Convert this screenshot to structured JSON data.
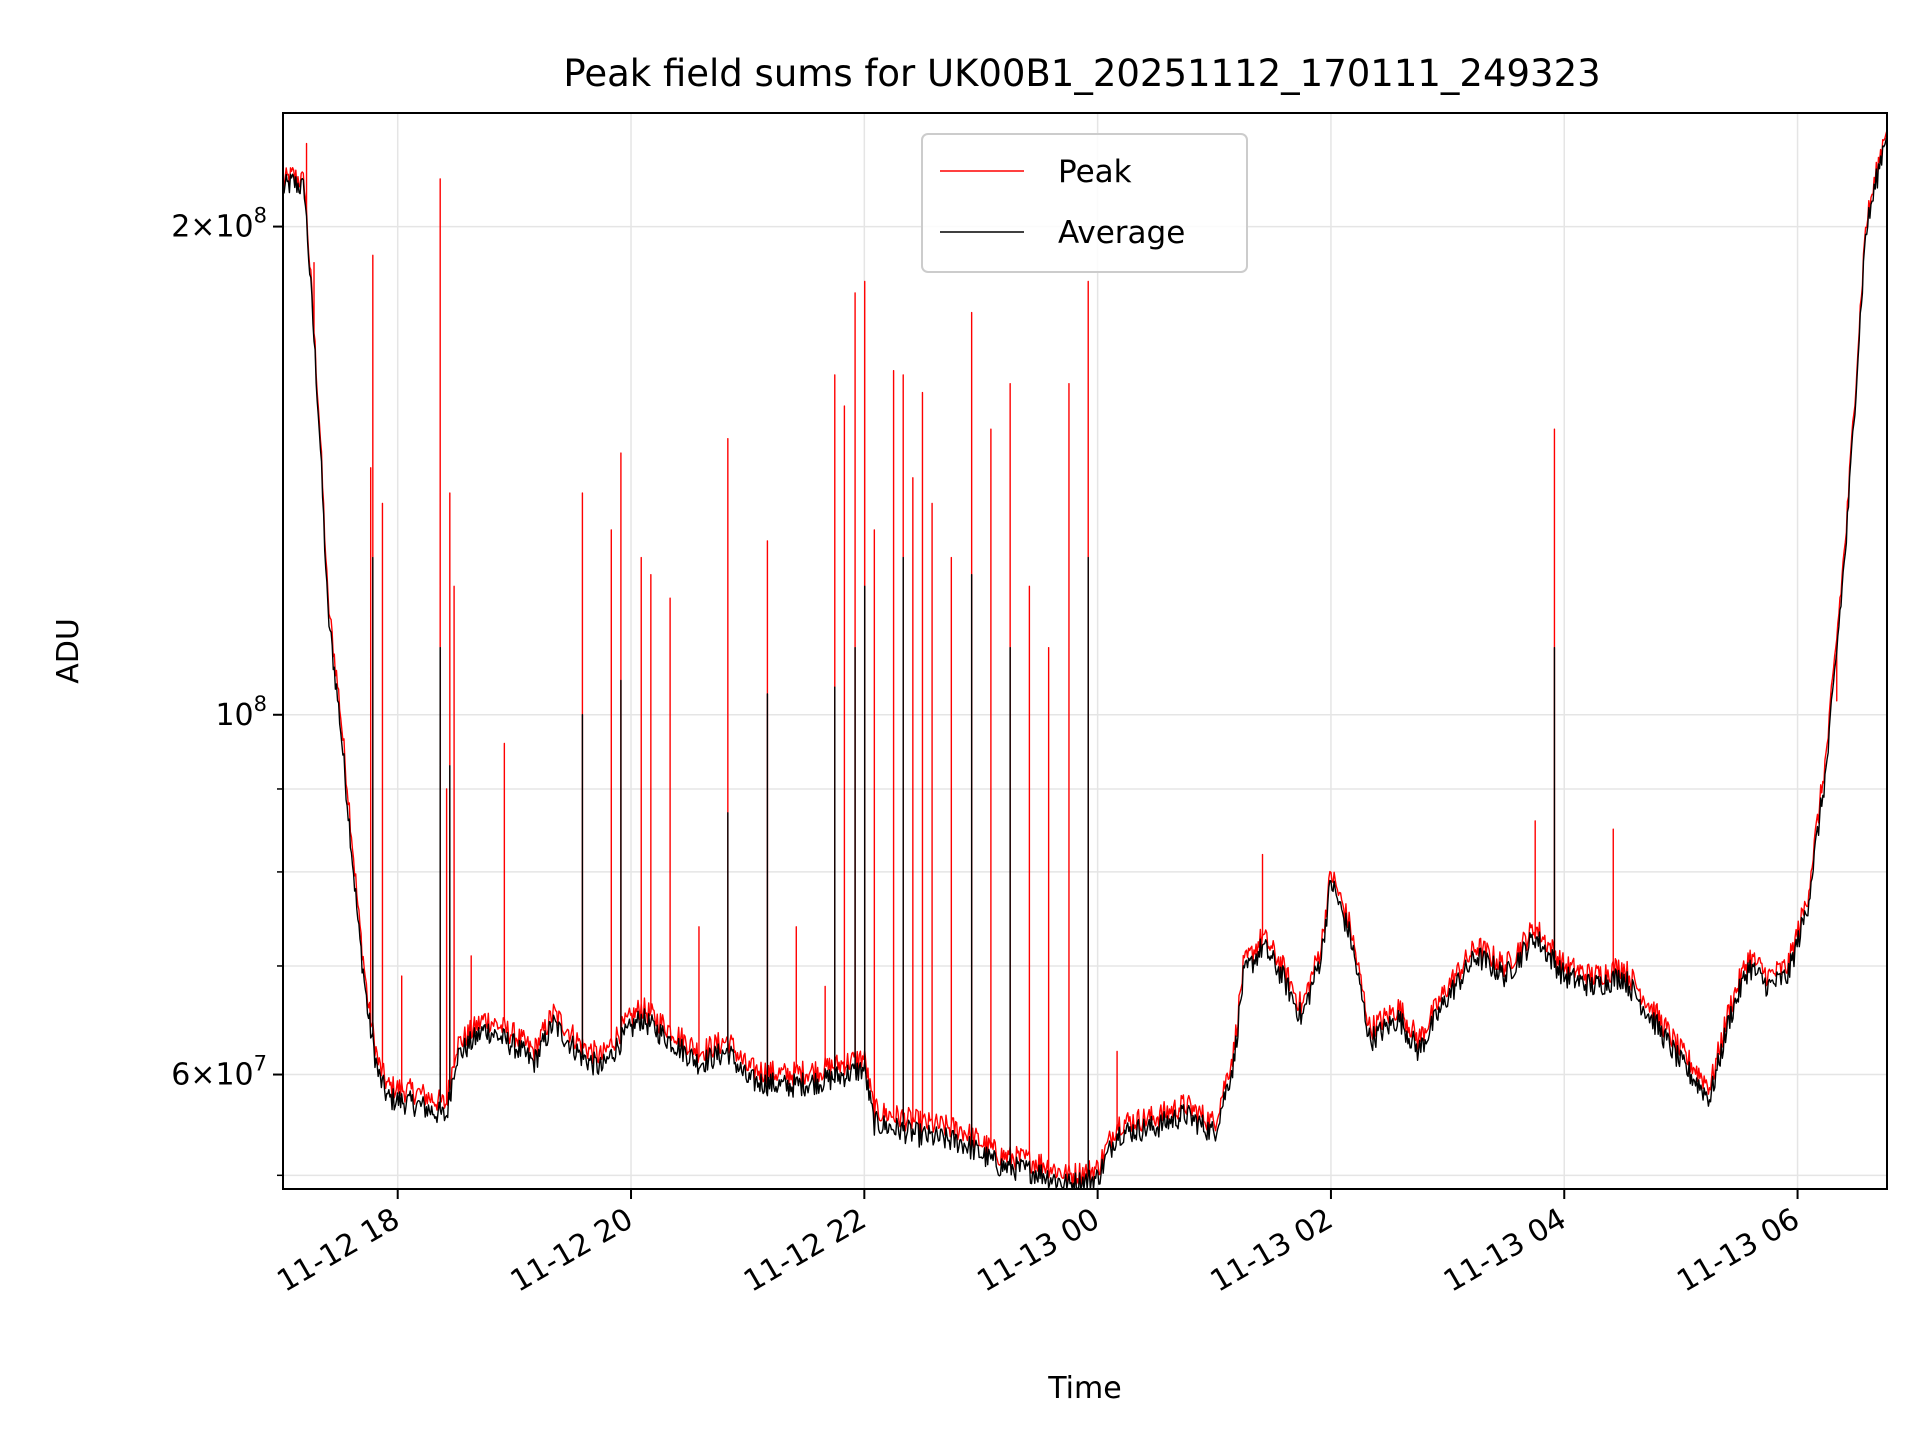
{
  "chart_data": {
    "type": "line",
    "title": "Peak field sums for UK00B1_20251112_170111_249323",
    "xlabel": "Time",
    "ylabel": "ADU",
    "y_scale": "log",
    "xlim": [
      "2025-11-12 17:01",
      "2025-11-13 06:46"
    ],
    "ylim": [
      51000000,
      235000000
    ],
    "grid": true,
    "legend": "upper center",
    "x_ticks": [
      {
        "t": "2025-11-12 18:00",
        "label": "11-12 18"
      },
      {
        "t": "2025-11-12 20:00",
        "label": "11-12 20"
      },
      {
        "t": "2025-11-12 22:00",
        "label": "11-12 22"
      },
      {
        "t": "2025-11-13 00:00",
        "label": "11-13 00"
      },
      {
        "t": "2025-11-13 02:00",
        "label": "11-13 02"
      },
      {
        "t": "2025-11-13 04:00",
        "label": "11-13 04"
      },
      {
        "t": "2025-11-13 06:00",
        "label": "11-13 06"
      }
    ],
    "y_ticks_major": [
      {
        "v": 60000000,
        "mant": "6",
        "exp": "7"
      },
      {
        "v": 100000000,
        "mant": "",
        "exp": "8"
      },
      {
        "v": 200000000,
        "mant": "2",
        "exp": "8"
      }
    ],
    "y_ticks_minor": [
      52000000,
      70000000,
      80000000,
      90000000
    ],
    "series": [
      {
        "name": "Peak",
        "color": "#ff0000",
        "points": [
          [
            "2025-11-12 17:01",
            213000000
          ],
          [
            "2025-11-12 17:06",
            215000000
          ],
          [
            "2025-11-12 17:12",
            213000000
          ],
          [
            "2025-11-12 17:16",
            180000000
          ],
          [
            "2025-11-12 17:20",
            150000000
          ],
          [
            "2025-11-12 17:24",
            118000000
          ],
          [
            "2025-11-12 17:30",
            102000000
          ],
          [
            "2025-11-12 17:35",
            88000000
          ],
          [
            "2025-11-12 17:40",
            75000000
          ],
          [
            "2025-11-12 17:45",
            66000000
          ],
          [
            "2025-11-12 17:50",
            61000000
          ],
          [
            "2025-11-12 17:55",
            59000000
          ],
          [
            "2025-11-12 18:10",
            58500000
          ],
          [
            "2025-11-12 18:25",
            57500000
          ],
          [
            "2025-11-12 18:30",
            62500000
          ],
          [
            "2025-11-12 18:45",
            65000000
          ],
          [
            "2025-11-12 19:00",
            63500000
          ],
          [
            "2025-11-12 19:10",
            62000000
          ],
          [
            "2025-11-12 19:20",
            65500000
          ],
          [
            "2025-11-12 19:35",
            62500000
          ],
          [
            "2025-11-12 19:45",
            61500000
          ],
          [
            "2025-11-12 19:55",
            64000000
          ],
          [
            "2025-11-12 20:05",
            66000000
          ],
          [
            "2025-11-12 20:20",
            64000000
          ],
          [
            "2025-11-12 20:35",
            62000000
          ],
          [
            "2025-11-12 20:50",
            63000000
          ],
          [
            "2025-11-12 21:00",
            60500000
          ],
          [
            "2025-11-12 21:20",
            60000000
          ],
          [
            "2025-11-12 21:40",
            60500000
          ],
          [
            "2025-11-12 22:00",
            61500000
          ],
          [
            "2025-11-12 22:05",
            57000000
          ],
          [
            "2025-11-12 22:30",
            56000000
          ],
          [
            "2025-11-12 22:50",
            55500000
          ],
          [
            "2025-11-12 23:10",
            53500000
          ],
          [
            "2025-11-12 23:30",
            53000000
          ],
          [
            "2025-11-12 23:45",
            52000000
          ],
          [
            "2025-11-13 00:00",
            52500000
          ],
          [
            "2025-11-13 00:10",
            56000000
          ],
          [
            "2025-11-13 00:30",
            56500000
          ],
          [
            "2025-11-13 00:45",
            57500000
          ],
          [
            "2025-11-13 01:00",
            56000000
          ],
          [
            "2025-11-13 01:10",
            62000000
          ],
          [
            "2025-11-13 01:15",
            70000000
          ],
          [
            "2025-11-13 01:25",
            73000000
          ],
          [
            "2025-11-13 01:35",
            70000000
          ],
          [
            "2025-11-13 01:45",
            66000000
          ],
          [
            "2025-11-13 01:55",
            72000000
          ],
          [
            "2025-11-13 02:00",
            80000000
          ],
          [
            "2025-11-13 02:10",
            74000000
          ],
          [
            "2025-11-13 02:20",
            64000000
          ],
          [
            "2025-11-13 02:35",
            66000000
          ],
          [
            "2025-11-13 02:45",
            63000000
          ],
          [
            "2025-11-13 03:00",
            68000000
          ],
          [
            "2025-11-13 03:15",
            72000000
          ],
          [
            "2025-11-13 03:30",
            70000000
          ],
          [
            "2025-11-13 03:45",
            74000000
          ],
          [
            "2025-11-13 04:00",
            70000000
          ],
          [
            "2025-11-13 04:15",
            69000000
          ],
          [
            "2025-11-13 04:30",
            70000000
          ],
          [
            "2025-11-13 04:45",
            66000000
          ],
          [
            "2025-11-13 05:00",
            62000000
          ],
          [
            "2025-11-13 05:15",
            59000000
          ],
          [
            "2025-11-13 05:25",
            66000000
          ],
          [
            "2025-11-13 05:35",
            71000000
          ],
          [
            "2025-11-13 05:45",
            69000000
          ],
          [
            "2025-11-13 05:55",
            70000000
          ],
          [
            "2025-11-13 06:05",
            77000000
          ],
          [
            "2025-11-13 06:15",
            95000000
          ],
          [
            "2025-11-13 06:25",
            130000000
          ],
          [
            "2025-11-13 06:35",
            200000000
          ],
          [
            "2025-11-13 06:46",
            232000000
          ]
        ],
        "spikes": [
          [
            "2025-11-12 17:13",
            225000000
          ],
          [
            "2025-11-12 17:17",
            190000000
          ],
          [
            "2025-11-12 17:46",
            142000000
          ],
          [
            "2025-11-12 17:47",
            192000000
          ],
          [
            "2025-11-12 17:52",
            135000000
          ],
          [
            "2025-11-12 18:02",
            69000000
          ],
          [
            "2025-11-12 18:22",
            214000000
          ],
          [
            "2025-11-12 18:25",
            90000000
          ],
          [
            "2025-11-12 18:27",
            137000000
          ],
          [
            "2025-11-12 18:29",
            120000000
          ],
          [
            "2025-11-12 18:38",
            71000000
          ],
          [
            "2025-11-12 18:55",
            96000000
          ],
          [
            "2025-11-12 19:35",
            137000000
          ],
          [
            "2025-11-12 19:50",
            130000000
          ],
          [
            "2025-11-12 19:55",
            145000000
          ],
          [
            "2025-11-12 20:05",
            125000000
          ],
          [
            "2025-11-12 20:10",
            122000000
          ],
          [
            "2025-11-12 20:20",
            118000000
          ],
          [
            "2025-11-12 20:35",
            74000000
          ],
          [
            "2025-11-12 20:50",
            148000000
          ],
          [
            "2025-11-12 21:10",
            128000000
          ],
          [
            "2025-11-12 21:25",
            74000000
          ],
          [
            "2025-11-12 21:40",
            68000000
          ],
          [
            "2025-11-12 21:45",
            162000000
          ],
          [
            "2025-11-12 21:50",
            155000000
          ],
          [
            "2025-11-12 21:55",
            182000000
          ],
          [
            "2025-11-12 22:00",
            185000000
          ],
          [
            "2025-11-12 22:05",
            130000000
          ],
          [
            "2025-11-12 22:15",
            163000000
          ],
          [
            "2025-11-12 22:20",
            162000000
          ],
          [
            "2025-11-12 22:25",
            140000000
          ],
          [
            "2025-11-12 22:30",
            158000000
          ],
          [
            "2025-11-12 22:35",
            135000000
          ],
          [
            "2025-11-12 22:45",
            125000000
          ],
          [
            "2025-11-12 22:55",
            177000000
          ],
          [
            "2025-11-12 23:05",
            150000000
          ],
          [
            "2025-11-12 23:15",
            160000000
          ],
          [
            "2025-11-12 23:25",
            120000000
          ],
          [
            "2025-11-12 23:35",
            110000000
          ],
          [
            "2025-11-12 23:45",
            160000000
          ],
          [
            "2025-11-12 23:55",
            185000000
          ],
          [
            "2025-11-13 00:10",
            62000000
          ],
          [
            "2025-11-13 01:25",
            82000000
          ],
          [
            "2025-11-13 03:45",
            86000000
          ],
          [
            "2025-11-13 03:55",
            150000000
          ],
          [
            "2025-11-13 04:25",
            85000000
          ],
          [
            "2025-11-13 06:20",
            102000000
          ]
        ]
      },
      {
        "name": "Average",
        "color": "#000000",
        "points": [
          [
            "2025-11-12 17:01",
            211000000
          ],
          [
            "2025-11-12 17:06",
            213000000
          ],
          [
            "2025-11-12 17:12",
            211000000
          ],
          [
            "2025-11-12 17:16",
            178000000
          ],
          [
            "2025-11-12 17:20",
            148000000
          ],
          [
            "2025-11-12 17:24",
            116000000
          ],
          [
            "2025-11-12 17:30",
            100000000
          ],
          [
            "2025-11-12 17:35",
            86000000
          ],
          [
            "2025-11-12 17:40",
            73500000
          ],
          [
            "2025-11-12 17:45",
            65000000
          ],
          [
            "2025-11-12 17:50",
            60000000
          ],
          [
            "2025-11-12 17:55",
            58000000
          ],
          [
            "2025-11-12 18:10",
            57500000
          ],
          [
            "2025-11-12 18:25",
            56500000
          ],
          [
            "2025-11-12 18:30",
            61500000
          ],
          [
            "2025-11-12 18:45",
            64000000
          ],
          [
            "2025-11-12 19:00",
            62500000
          ],
          [
            "2025-11-12 19:10",
            61000000
          ],
          [
            "2025-11-12 19:20",
            64500000
          ],
          [
            "2025-11-12 19:35",
            61500000
          ],
          [
            "2025-11-12 19:45",
            60500000
          ],
          [
            "2025-11-12 19:55",
            63000000
          ],
          [
            "2025-11-12 20:05",
            65000000
          ],
          [
            "2025-11-12 20:20",
            63000000
          ],
          [
            "2025-11-12 20:35",
            61000000
          ],
          [
            "2025-11-12 20:50",
            62000000
          ],
          [
            "2025-11-12 21:00",
            59500000
          ],
          [
            "2025-11-12 21:20",
            59000000
          ],
          [
            "2025-11-12 21:40",
            59500000
          ],
          [
            "2025-11-12 22:00",
            60500000
          ],
          [
            "2025-11-12 22:05",
            56000000
          ],
          [
            "2025-11-12 22:30",
            55000000
          ],
          [
            "2025-11-12 22:50",
            54500000
          ],
          [
            "2025-11-12 23:10",
            52700000
          ],
          [
            "2025-11-12 23:30",
            52200000
          ],
          [
            "2025-11-12 23:45",
            51300000
          ],
          [
            "2025-11-13 00:00",
            51800000
          ],
          [
            "2025-11-13 00:10",
            55200000
          ],
          [
            "2025-11-13 00:30",
            55700000
          ],
          [
            "2025-11-13 00:45",
            56700000
          ],
          [
            "2025-11-13 01:00",
            55200000
          ],
          [
            "2025-11-13 01:10",
            61000000
          ],
          [
            "2025-11-13 01:15",
            69000000
          ],
          [
            "2025-11-13 01:25",
            72000000
          ],
          [
            "2025-11-13 01:35",
            69000000
          ],
          [
            "2025-11-13 01:45",
            65000000
          ],
          [
            "2025-11-13 01:55",
            71000000
          ],
          [
            "2025-11-13 02:00",
            79000000
          ],
          [
            "2025-11-13 02:10",
            73000000
          ],
          [
            "2025-11-13 02:20",
            63000000
          ],
          [
            "2025-11-13 02:35",
            65000000
          ],
          [
            "2025-11-13 02:45",
            62000000
          ],
          [
            "2025-11-13 03:00",
            67000000
          ],
          [
            "2025-11-13 03:15",
            71000000
          ],
          [
            "2025-11-13 03:30",
            69000000
          ],
          [
            "2025-11-13 03:45",
            73000000
          ],
          [
            "2025-11-13 04:00",
            69000000
          ],
          [
            "2025-11-13 04:15",
            68000000
          ],
          [
            "2025-11-13 04:30",
            69000000
          ],
          [
            "2025-11-13 04:45",
            65000000
          ],
          [
            "2025-11-13 05:00",
            61000000
          ],
          [
            "2025-11-13 05:15",
            58000000
          ],
          [
            "2025-11-13 05:25",
            65000000
          ],
          [
            "2025-11-13 05:35",
            70000000
          ],
          [
            "2025-11-13 05:45",
            68000000
          ],
          [
            "2025-11-13 05:55",
            69000000
          ],
          [
            "2025-11-13 06:05",
            76000000
          ],
          [
            "2025-11-13 06:15",
            93000000
          ],
          [
            "2025-11-13 06:25",
            128000000
          ],
          [
            "2025-11-13 06:35",
            198000000
          ],
          [
            "2025-11-13 06:46",
            230000000
          ]
        ],
        "spikes": [
          [
            "2025-11-12 17:47",
            125000000
          ],
          [
            "2025-11-12 18:22",
            110000000
          ],
          [
            "2025-11-12 18:27",
            93000000
          ],
          [
            "2025-11-12 19:35",
            100000000
          ],
          [
            "2025-11-12 19:55",
            105000000
          ],
          [
            "2025-11-12 20:50",
            87000000
          ],
          [
            "2025-11-12 21:10",
            103000000
          ],
          [
            "2025-11-12 21:45",
            104000000
          ],
          [
            "2025-11-12 21:55",
            110000000
          ],
          [
            "2025-11-12 22:00",
            120000000
          ],
          [
            "2025-11-12 22:20",
            125000000
          ],
          [
            "2025-11-12 22:55",
            122000000
          ],
          [
            "2025-11-12 23:15",
            110000000
          ],
          [
            "2025-11-12 23:55",
            125000000
          ],
          [
            "2025-11-13 03:55",
            110000000
          ]
        ]
      }
    ]
  }
}
